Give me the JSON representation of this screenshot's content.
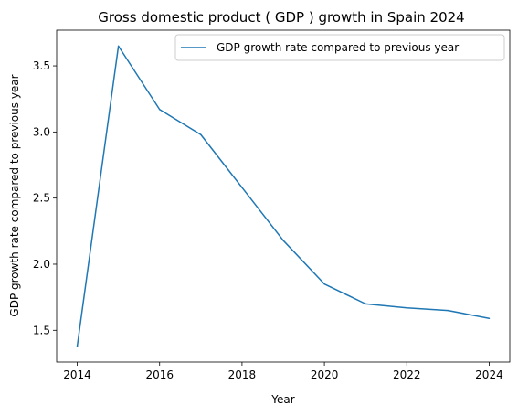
{
  "chart_data": {
    "type": "line",
    "title": "Gross domestic product ( GDP ) growth in Spain 2024",
    "xlabel": "Year",
    "ylabel": "GDP growth rate compared to previous year",
    "x": [
      2014,
      2015,
      2016,
      2017,
      2018,
      2019,
      2020,
      2021,
      2022,
      2023,
      2024
    ],
    "series": [
      {
        "name": "GDP growth rate compared to previous year",
        "values": [
          1.38,
          3.65,
          3.17,
          2.98,
          2.58,
          2.18,
          1.85,
          1.7,
          1.67,
          1.65,
          1.59
        ],
        "color": "#1f77b4"
      }
    ],
    "xlim": [
      2013.5,
      2024.5
    ],
    "ylim": [
      1.26,
      3.77
    ],
    "xticks": [
      2014,
      2016,
      2018,
      2020,
      2022,
      2024
    ],
    "yticks": [
      1.5,
      2.0,
      2.5,
      3.0,
      3.5
    ],
    "ytick_labels": [
      "1.5",
      "2.0",
      "2.5",
      "3.0",
      "3.5"
    ],
    "grid": false,
    "legend_position": "top-right"
  }
}
